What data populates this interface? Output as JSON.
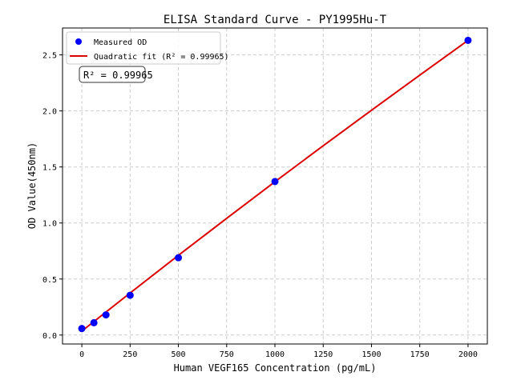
{
  "chart_data": {
    "type": "scatter",
    "title": "ELISA Standard Curve - PY1995Hu-T",
    "xlabel": "Human VEGF165 Concentration (pg/mL)",
    "ylabel": "OD Value(450nm)",
    "xlim": [
      -100,
      2100
    ],
    "ylim": [
      -0.08,
      2.74
    ],
    "xticks": [
      0,
      250,
      500,
      750,
      1000,
      1250,
      1500,
      1750,
      2000
    ],
    "yticks": [
      0.0,
      0.5,
      1.0,
      1.5,
      2.0,
      2.5
    ],
    "xtick_labels": [
      "0",
      "250",
      "500",
      "750",
      "1000",
      "1250",
      "1500",
      "1750",
      "2000"
    ],
    "ytick_labels": [
      "0.0",
      "0.5",
      "1.0",
      "1.5",
      "2.0",
      "2.5"
    ],
    "grid": true,
    "legend_position": "top-left",
    "series": [
      {
        "name": "Measured OD",
        "kind": "scatter",
        "color": "#0000ff",
        "x": [
          0,
          62.5,
          125,
          250,
          500,
          1000,
          2000
        ],
        "y": [
          0.058,
          0.11,
          0.18,
          0.355,
          0.69,
          1.37,
          2.63
        ]
      },
      {
        "name": "Quadratic fit (R² = 0.99965)",
        "kind": "line",
        "color": "#dd0000",
        "x": [
          0,
          250,
          500,
          750,
          1000,
          1250,
          1500,
          1750,
          2000
        ],
        "y": [
          0.035,
          0.375,
          0.711,
          1.041,
          1.368,
          1.689,
          2.006,
          2.319,
          2.63
        ]
      }
    ],
    "annotation": "R² = 0.99965"
  }
}
